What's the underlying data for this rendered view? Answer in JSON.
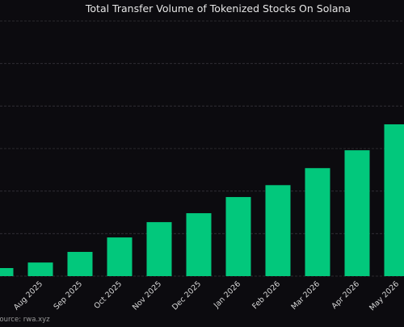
{
  "chart_data": {
    "type": "bar",
    "title": "Total Transfer Volume of Tokenized Stocks On Solana",
    "source": "Source: rwa.xyz",
    "categories": [
      null,
      "Aug 2025",
      "Sep 2025",
      "Oct 2025",
      "Nov 2025",
      "Dec 2025",
      "Jan 2026",
      "Feb 2026",
      "Mar 2026",
      "Apr 2026",
      "May 2026"
    ],
    "values": [
      0.19,
      0.32,
      0.57,
      0.91,
      1.27,
      1.48,
      1.86,
      2.14,
      2.54,
      2.96,
      3.57
    ],
    "color": "#02c87c",
    "ylim": [
      0,
      6
    ],
    "yticks": [
      0,
      1,
      2,
      3,
      4,
      5,
      6
    ],
    "tick_labels": false,
    "grid": true
  }
}
